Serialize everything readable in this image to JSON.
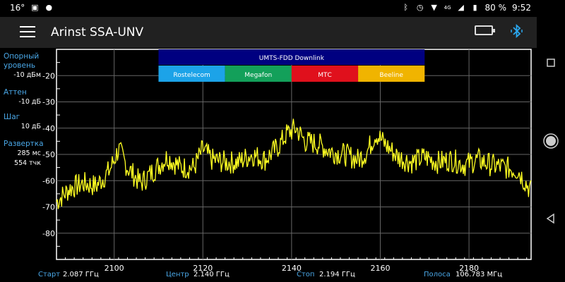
{
  "status": {
    "temp": "16°",
    "battery_pct": "80 %",
    "time": "9:52",
    "network": "4G"
  },
  "app": {
    "title": "Arinst SSA-UNV"
  },
  "icons": {
    "menu": "hamburger-menu-icon",
    "battery": "battery-icon",
    "bluetooth": "bluetooth-icon"
  },
  "params": {
    "ref_label": "Опорный уровень",
    "ref_value": "-10 дБм",
    "atten_label": "Аттен",
    "atten_value": "-10 дБ",
    "step_label": "Шаг",
    "step_value": "10 дБ",
    "sweep_label": "Развертка",
    "sweep_time": "285 мс",
    "sweep_points": "554 тчк"
  },
  "bottom": {
    "start_label": "Старт",
    "start_value": "2.087 ГГц",
    "center_label": "Центр",
    "center_value": "2.140 ГГц",
    "stop_label": "Стоп",
    "stop_value": "2.194 ГГц",
    "span_label": "Полоса",
    "span_value": "106.783 МГц"
  },
  "chart_data": {
    "type": "line",
    "xlim": [
      2087,
      2194
    ],
    "ylim": [
      -10,
      -90
    ],
    "x_ticks": [
      2100,
      2120,
      2140,
      2160,
      2180
    ],
    "y_ticks": [
      -20,
      -30,
      -40,
      -50,
      -60,
      -70,
      -80
    ],
    "band": {
      "label": "UMTS-FDD Downlink",
      "from": 2110,
      "to": 2170,
      "color": "#000080"
    },
    "operators": [
      {
        "name": "Rostelecom",
        "from": 2110,
        "to": 2125,
        "color": "#1ca3e8"
      },
      {
        "name": "Megafon",
        "from": 2125,
        "to": 2140,
        "color": "#13a05a"
      },
      {
        "name": "МТС",
        "from": 2140,
        "to": 2155,
        "color": "#e0101c"
      },
      {
        "name": "Beeline",
        "from": 2155,
        "to": 2170,
        "color": "#f0b400"
      }
    ],
    "series": [
      {
        "color": "#ffff22",
        "x": [
          2087,
          2090,
          2093,
          2096,
          2099,
          2101,
          2103,
          2106,
          2109,
          2112,
          2115,
          2118,
          2120,
          2122,
          2125,
          2128,
          2131,
          2134,
          2137,
          2139,
          2141,
          2143,
          2146,
          2149,
          2152,
          2155,
          2157,
          2159,
          2161,
          2164,
          2167,
          2170,
          2173,
          2176,
          2179,
          2182,
          2185,
          2188,
          2191,
          2194
        ],
        "y": [
          -68,
          -63,
          -61,
          -62,
          -56,
          -48,
          -55,
          -61,
          -56,
          -51,
          -55,
          -55,
          -48,
          -52,
          -53,
          -53,
          -50,
          -52,
          -47,
          -42,
          -40,
          -45,
          -46,
          -49,
          -50,
          -52,
          -49,
          -42,
          -46,
          -51,
          -53,
          -51,
          -53,
          -52,
          -54,
          -52,
          -54,
          -55,
          -56,
          -64
        ]
      }
    ]
  }
}
